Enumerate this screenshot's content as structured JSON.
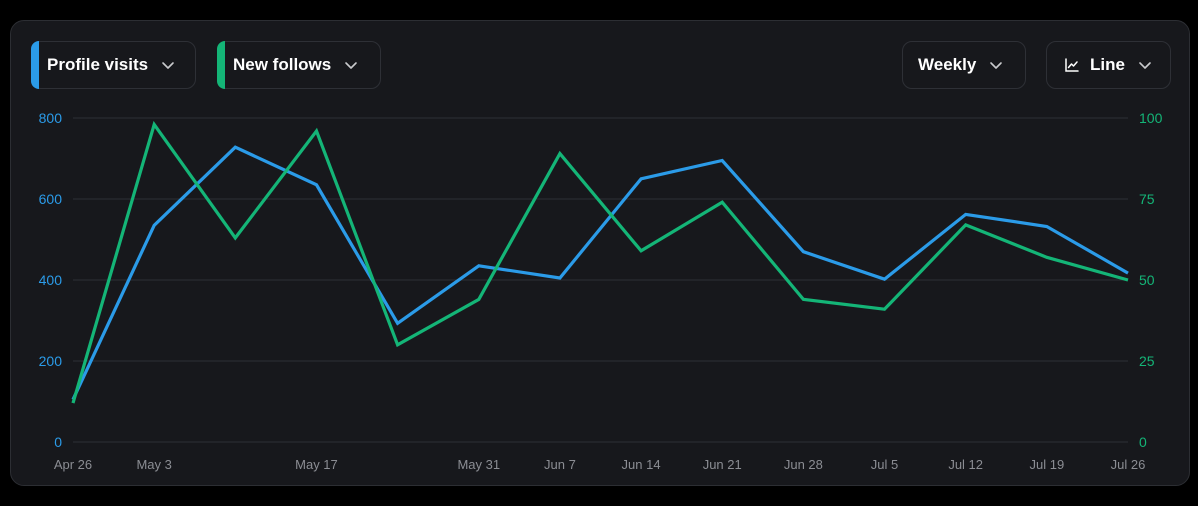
{
  "controls": {
    "series1_label": "Profile visits",
    "series2_label": "New follows",
    "interval_label": "Weekly",
    "chart_type_label": "Line"
  },
  "colors": {
    "background": "#17181c",
    "series1": "#2b9be8",
    "series2": "#14b577",
    "grid": "#2e3036",
    "x_tick": "#8b8d93"
  },
  "icons": {
    "series_dropdown": "chevron-down-icon",
    "chart_type": "line-chart-icon"
  },
  "chart_data": {
    "type": "line",
    "x": [
      "Apr 26",
      "May 3",
      "May 10",
      "May 17",
      "May 24",
      "May 31",
      "Jun 7",
      "Jun 14",
      "Jun 21",
      "Jun 28",
      "Jul 5",
      "Jul 12",
      "Jul 19",
      "Jul 26"
    ],
    "x_tick_labels": [
      "Apr 26",
      "May 3",
      "May 17",
      "May 31",
      "Jun 7",
      "Jun 14",
      "Jun 21",
      "Jun 28",
      "Jul 5",
      "Jul 12",
      "Jul 19",
      "Jul 26"
    ],
    "series": [
      {
        "name": "Profile visits",
        "axis": "left",
        "color": "#2b9be8",
        "values": [
          105,
          535,
          728,
          635,
          293,
          435,
          405,
          650,
          695,
          470,
          402,
          562,
          532,
          417
        ]
      },
      {
        "name": "New follows",
        "axis": "right",
        "color": "#14b577",
        "values": [
          12,
          98,
          63,
          96,
          30,
          44,
          89,
          59,
          74,
          44,
          41,
          67,
          57,
          50
        ]
      }
    ],
    "left_axis": {
      "ylim": [
        0,
        800
      ],
      "ticks": [
        0,
        200,
        400,
        600,
        800
      ]
    },
    "right_axis": {
      "ylim": [
        0,
        100
      ],
      "ticks": [
        0,
        25,
        50,
        75,
        100
      ]
    },
    "grid": true
  }
}
